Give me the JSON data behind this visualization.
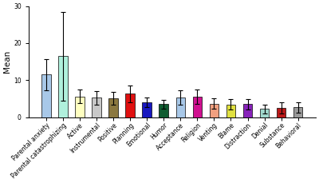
{
  "categories": [
    "Parental anxiety",
    "Parental catastrophizing",
    "Active",
    "Instrumental",
    "Positive",
    "Planning",
    "Emotional",
    "Humor",
    "Acceptance",
    "Religion",
    "Venting",
    "Blame",
    "Distraction",
    "Denial",
    "Substance",
    "Behavioral"
  ],
  "values": [
    11.5,
    16.5,
    5.6,
    5.2,
    5.1,
    6.3,
    4.0,
    3.5,
    5.3,
    5.5,
    3.6,
    3.4,
    3.5,
    2.2,
    2.5,
    2.7
  ],
  "errors": [
    4.2,
    12.0,
    1.8,
    1.8,
    1.7,
    2.3,
    1.4,
    1.2,
    1.9,
    2.0,
    1.4,
    1.4,
    1.4,
    1.2,
    1.5,
    1.4
  ],
  "colors": [
    "#a8c8e8",
    "#b0f0dc",
    "#ffffc0",
    "#c8c8c8",
    "#8b7840",
    "#e01010",
    "#1818c0",
    "#0f5c30",
    "#a8c8e8",
    "#d01090",
    "#f0a080",
    "#e0e040",
    "#8822bb",
    "#a0d8cc",
    "#bb1818",
    "#999999"
  ],
  "ylabel": "Mean",
  "ylim": [
    0,
    30
  ],
  "yticks": [
    0,
    10,
    20,
    30
  ],
  "background_color": "#ffffff",
  "tick_fontsize": 5.5,
  "label_fontsize": 7.5,
  "bar_width": 0.55
}
